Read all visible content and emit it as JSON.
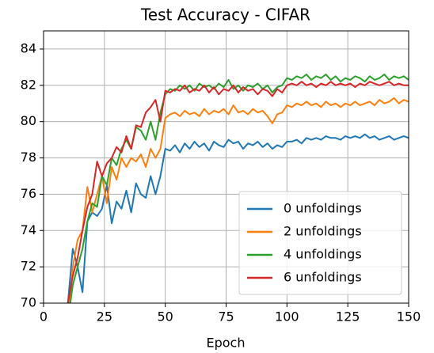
{
  "chart_data": {
    "type": "line",
    "title": "Test Accuracy - CIFAR",
    "x_label": "Epoch",
    "x": [
      10,
      12,
      14,
      16,
      18,
      20,
      22,
      24,
      26,
      28,
      30,
      32,
      34,
      36,
      38,
      40,
      42,
      44,
      46,
      48,
      50,
      52,
      54,
      56,
      58,
      60,
      62,
      64,
      66,
      68,
      70,
      72,
      74,
      76,
      78,
      80,
      82,
      84,
      86,
      88,
      90,
      92,
      94,
      96,
      98,
      100,
      102,
      104,
      106,
      108,
      110,
      112,
      114,
      116,
      118,
      120,
      122,
      124,
      126,
      128,
      130,
      132,
      134,
      136,
      138,
      140,
      142,
      144,
      146,
      148,
      150
    ],
    "series": [
      {
        "name": "0 unfoldings",
        "color": "#1f77b4",
        "values": [
          70,
          73,
          72,
          70.6,
          74.5,
          75,
          74.8,
          75.2,
          76.5,
          74.4,
          75.6,
          75.2,
          76.2,
          75,
          76.6,
          76,
          75.8,
          77,
          76,
          77,
          78.5,
          78.4,
          78.7,
          78.3,
          78.8,
          78.5,
          78.9,
          78.6,
          78.8,
          78.4,
          78.9,
          78.7,
          78.6,
          79,
          78.8,
          78.9,
          78.5,
          78.8,
          78.7,
          78.9,
          78.6,
          78.8,
          78.5,
          78.7,
          78.6,
          78.9,
          78.9,
          79,
          78.8,
          79.1,
          79,
          79.1,
          79,
          79.2,
          79.1,
          79.1,
          79,
          79.2,
          79.1,
          79.2,
          79.1,
          79.3,
          79.1,
          79.2,
          79,
          79.1,
          79.2,
          79,
          79.1,
          79.2,
          79.1
        ]
      },
      {
        "name": "2 unfoldings",
        "color": "#ff7f0e",
        "values": [
          69,
          72,
          73.5,
          74,
          76.4,
          75,
          76,
          77,
          75.5,
          77.5,
          76.8,
          78,
          77.5,
          78,
          77.8,
          78.2,
          77.5,
          78.5,
          78,
          78.5,
          80.2,
          80.4,
          80.5,
          80.3,
          80.6,
          80.4,
          80.5,
          80.3,
          80.7,
          80.4,
          80.6,
          80.5,
          80.7,
          80.4,
          80.9,
          80.5,
          80.6,
          80.4,
          80.7,
          80.5,
          80.6,
          80.3,
          79.9,
          80.4,
          80.5,
          80.9,
          80.8,
          81,
          80.9,
          81.1,
          80.9,
          81,
          80.8,
          81.1,
          80.9,
          81,
          80.8,
          81,
          80.9,
          81.1,
          80.9,
          81,
          81.1,
          80.9,
          81.2,
          81,
          81.1,
          81.3,
          81,
          81.2,
          81.1
        ]
      },
      {
        "name": "4 unfoldings",
        "color": "#2ca02c",
        "values": [
          69,
          71,
          72,
          73,
          74.5,
          75.5,
          75.3,
          77,
          76.5,
          78,
          77.6,
          78.5,
          79,
          78.5,
          79.7,
          79.5,
          79,
          80,
          79,
          80.5,
          81.5,
          81.8,
          81.7,
          82,
          81.8,
          82,
          81.7,
          82.1,
          81.9,
          82,
          81.8,
          82.1,
          81.9,
          82.3,
          81.8,
          82,
          81.7,
          82,
          81.9,
          82.1,
          81.8,
          82,
          81.6,
          81.9,
          82,
          82.4,
          82.3,
          82.5,
          82.4,
          82.6,
          82.3,
          82.5,
          82.4,
          82.6,
          82.3,
          82.5,
          82.2,
          82.4,
          82.3,
          82.5,
          82.4,
          82.2,
          82.5,
          82.3,
          82.4,
          82.6,
          82.3,
          82.5,
          82.4,
          82.5,
          82.3
        ]
      },
      {
        "name": "6 unfoldings",
        "color": "#d62728",
        "values": [
          70,
          71.5,
          72.5,
          74,
          75.3,
          76,
          77.8,
          77,
          77.7,
          78,
          78.6,
          78.3,
          79.2,
          78.5,
          79.8,
          79.7,
          80.5,
          80.8,
          81.2,
          80,
          81.7,
          81.6,
          81.8,
          81.7,
          82,
          81.6,
          81.8,
          81.7,
          82,
          81.6,
          81.9,
          81.5,
          81.8,
          81.7,
          82,
          81.6,
          81.9,
          81.7,
          81.8,
          81.5,
          81.8,
          81.7,
          81.4,
          81.8,
          81.6,
          82,
          82.1,
          82,
          82.2,
          82,
          82.1,
          81.9,
          82.1,
          82,
          82.2,
          82,
          82.1,
          82,
          82.1,
          81.9,
          82.1,
          82,
          82.2,
          82.1,
          82,
          82.1,
          82.2,
          82,
          82.1,
          82,
          82
        ]
      }
    ],
    "xlim": [
      0,
      150
    ],
    "xticks": [
      0,
      25,
      50,
      75,
      100,
      125,
      150
    ],
    "ylim": [
      70,
      85
    ],
    "yticks": [
      70,
      72,
      74,
      76,
      78,
      80,
      82,
      84
    ],
    "grid": true,
    "legend": "lower right"
  }
}
